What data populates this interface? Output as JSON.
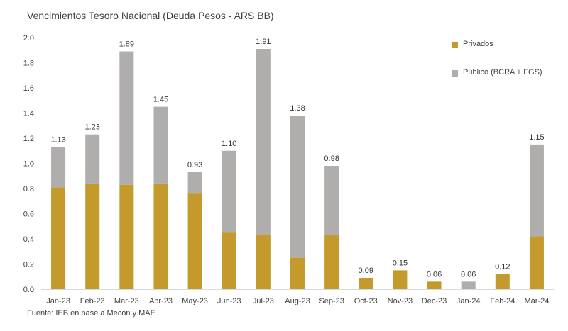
{
  "title": "Vencimientos Tesoro Nacional (Deuda Pesos - ARS BB)",
  "source": "Fuente: IEB en base a Mecon y MAE",
  "legend": {
    "privados": "Privados",
    "publico": "Público (BCRA + FGS)"
  },
  "colors": {
    "privados": "#c49a2c",
    "publico": "#b0adad"
  },
  "chart_data": {
    "type": "bar",
    "stacked": true,
    "title": "Vencimientos Tesoro Nacional (Deuda Pesos - ARS BB)",
    "categories": [
      "Jan-23",
      "Feb-23",
      "Mar-23",
      "Apr-23",
      "May-23",
      "Jun-23",
      "Jul-23",
      "Aug-23",
      "Sep-23",
      "Oct-23",
      "Nov-23",
      "Dec-23",
      "Jan-24",
      "Feb-24",
      "Mar-24"
    ],
    "series": [
      {
        "name": "Privados",
        "values": [
          0.81,
          0.84,
          0.83,
          0.84,
          0.76,
          0.45,
          0.43,
          0.25,
          0.43,
          0.09,
          0.15,
          0.06,
          0.0,
          0.12,
          0.42
        ]
      },
      {
        "name": "Público (BCRA + FGS)",
        "values": [
          0.32,
          0.39,
          1.06,
          0.61,
          0.17,
          0.65,
          1.48,
          1.13,
          0.55,
          0.0,
          0.0,
          0.0,
          0.06,
          0.0,
          0.73
        ]
      }
    ],
    "totals": [
      "1.13",
      "1.23",
      "1.89",
      "1.45",
      "0.93",
      "1.10",
      "1.91",
      "1.38",
      "0.98",
      "0.09",
      "0.15",
      "0.06",
      "0.06",
      "0.12",
      "1.15"
    ],
    "yticks": [
      "0.0",
      "0.2",
      "0.4",
      "0.6",
      "0.8",
      "1.0",
      "1.2",
      "1.4",
      "1.6",
      "1.8",
      "2.0"
    ],
    "ylim": [
      0,
      2.0
    ],
    "grid": false,
    "legend_position": "top-right"
  }
}
